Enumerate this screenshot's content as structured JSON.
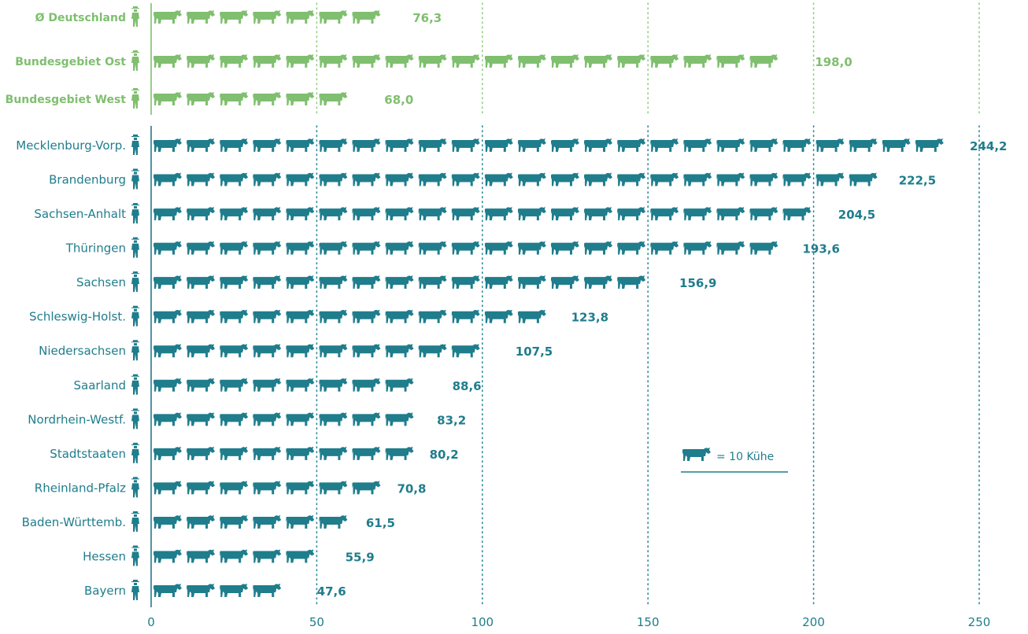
{
  "colors": {
    "summary": "#7fbf6f",
    "states": "#1f7d8c",
    "grid_summary": "#8fcf7f",
    "grid_states": "#2a8a99"
  },
  "chart_data": {
    "type": "bar",
    "unit_icon": "cow-icon",
    "row_icon": "farmer-icon",
    "icon_unit_value": 10,
    "xlim": [
      0,
      250
    ],
    "xticks": [
      0,
      50,
      100,
      150,
      200,
      250
    ],
    "xtick_labels": [
      "0",
      "50",
      "100",
      "150",
      "200",
      "250"
    ],
    "legend": {
      "text": "= 10 Kühe",
      "placement": "bottom-right"
    },
    "summary_series": {
      "categories": [
        "Ø Deutschland",
        "Bundesgebiet Ost",
        "Bundesgebiet West"
      ],
      "values": [
        76.3,
        198.0,
        68.0
      ],
      "value_labels": [
        "76,3",
        "198,0",
        "68,0"
      ]
    },
    "state_series": {
      "categories": [
        "Mecklenburg-Vorp.",
        "Brandenburg",
        "Sachsen-Anhalt",
        "Thüringen",
        "Sachsen",
        "Schleswig-Holst.",
        "Niedersachsen",
        "Saarland",
        "Nordrhein-Westf.",
        "Stadtstaaten",
        "Rheinland-Pfalz",
        "Baden-Württemb.",
        "Hessen",
        "Bayern"
      ],
      "values": [
        244.2,
        222.5,
        204.5,
        193.6,
        156.9,
        123.8,
        107.5,
        88.6,
        83.2,
        80.2,
        70.8,
        61.5,
        55.9,
        47.6
      ],
      "value_labels": [
        "244,2",
        "222,5",
        "204,5",
        "193,6",
        "156,9",
        "123,8",
        "107,5",
        "88,6",
        "83,2",
        "80,2",
        "70,8",
        "61,5",
        "55,9",
        "47,6"
      ]
    }
  }
}
